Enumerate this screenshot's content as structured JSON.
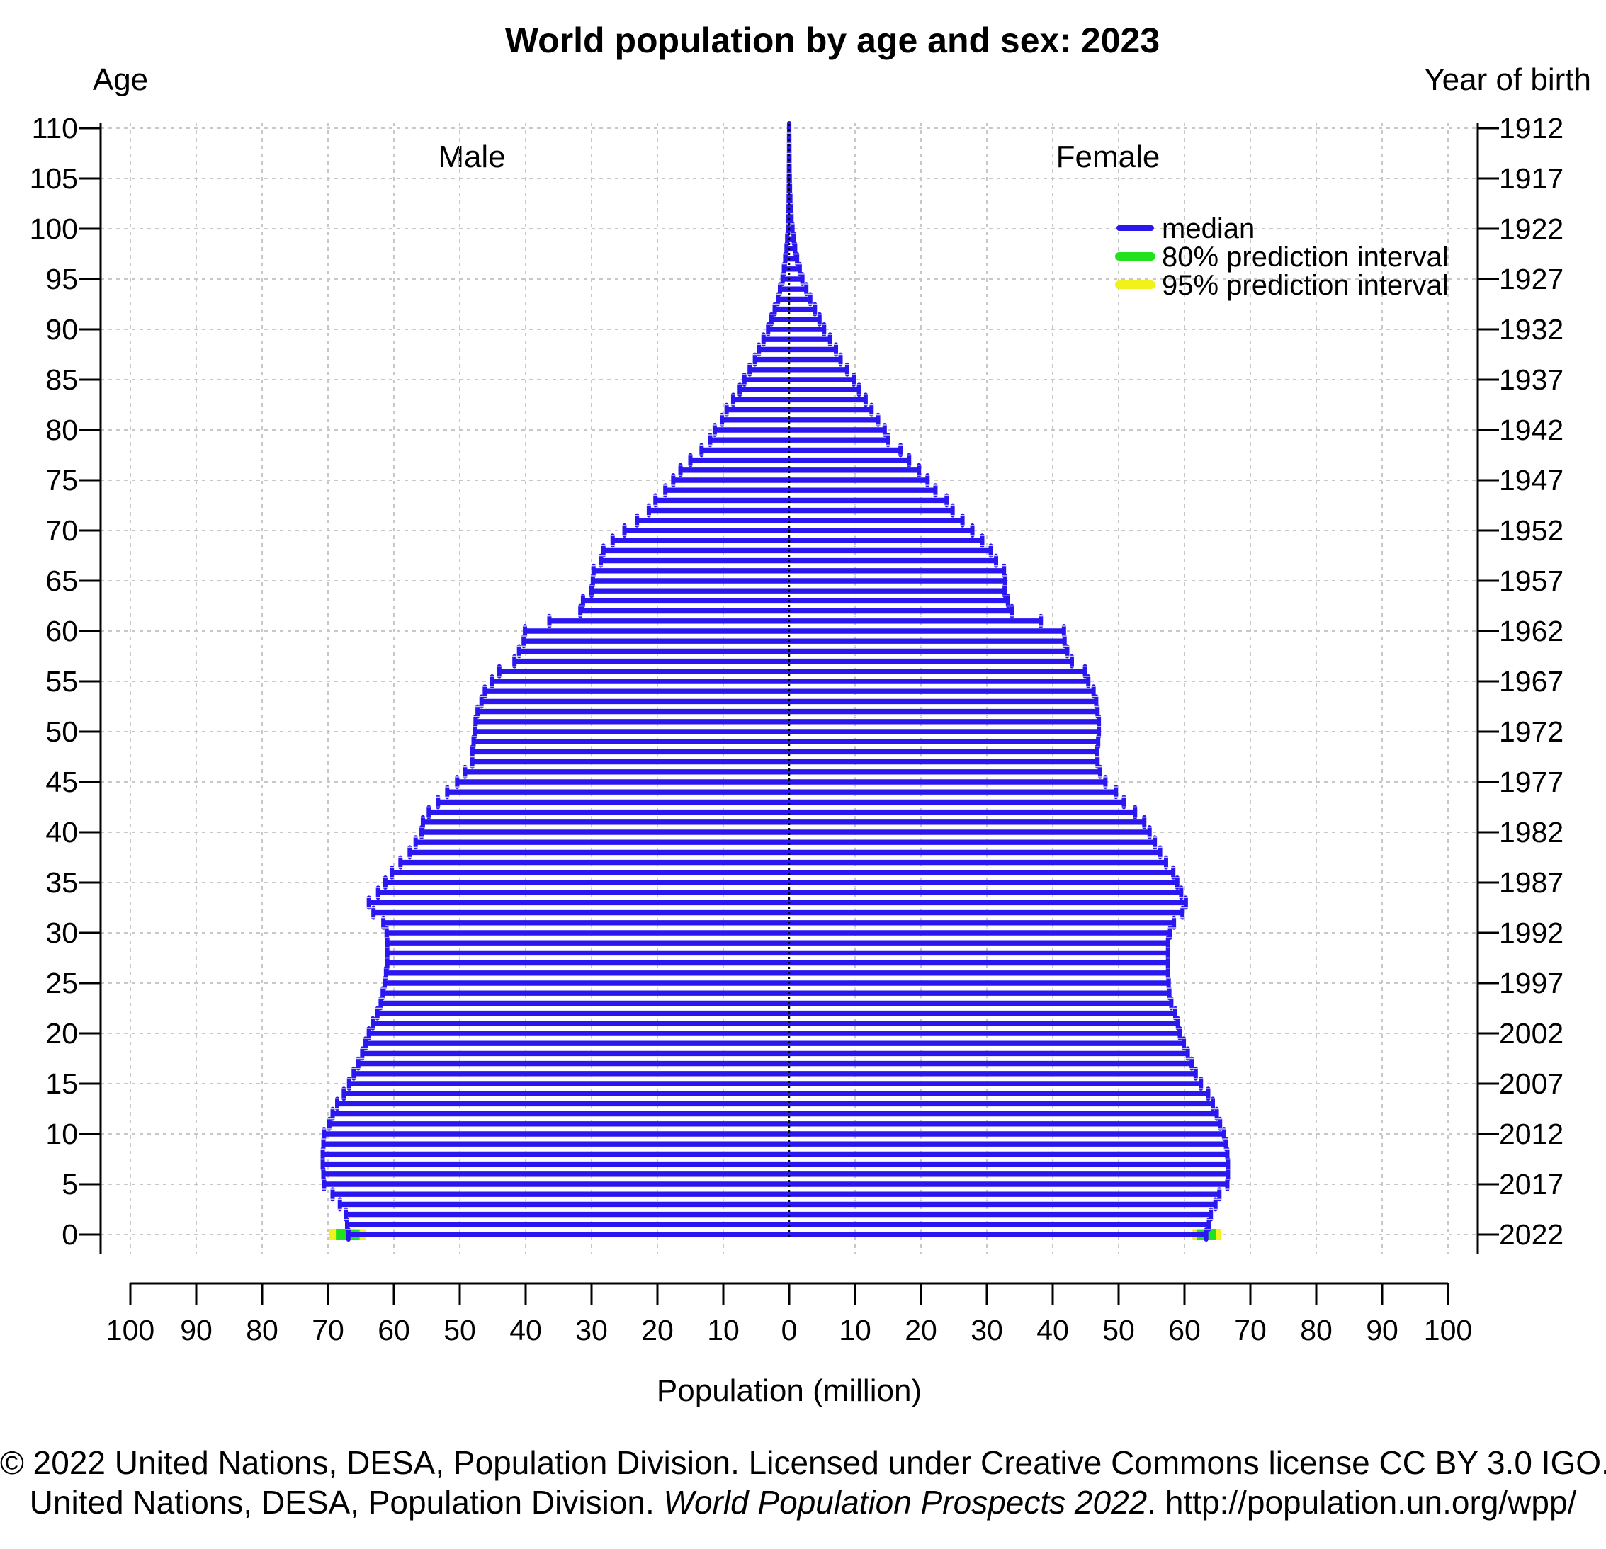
{
  "colors": {
    "median": "#2a17f0",
    "pi80": "#22e11f",
    "pi95": "#f2f21a"
  },
  "chart_data": {
    "type": "bar",
    "orientation": "horizontal",
    "title": "World population by age and sex: 2023",
    "left_axis_label": "Age",
    "right_axis_label": "Year of birth",
    "xlabel": "Population (million)",
    "male_label": "Male",
    "female_label": "Female",
    "grid": true,
    "legend_position": "top-right",
    "xlim": [
      -100,
      100
    ],
    "ylim": [
      0,
      110
    ],
    "x_ticks": [
      "100",
      "90",
      "80",
      "70",
      "60",
      "50",
      "40",
      "30",
      "20",
      "10",
      "0",
      "10",
      "20",
      "30",
      "40",
      "50",
      "60",
      "70",
      "80",
      "90",
      "100"
    ],
    "age_ticks": [
      "0",
      "5",
      "10",
      "15",
      "20",
      "25",
      "30",
      "35",
      "40",
      "45",
      "50",
      "55",
      "60",
      "65",
      "70",
      "75",
      "80",
      "85",
      "90",
      "95",
      "100",
      "105",
      "110"
    ],
    "birth_year_ticks": [
      "2022",
      "2017",
      "2012",
      "2007",
      "2002",
      "1997",
      "1992",
      "1987",
      "1982",
      "1977",
      "1972",
      "1967",
      "1962",
      "1957",
      "1952",
      "1947",
      "1942",
      "1937",
      "1932",
      "1927",
      "1922",
      "1917",
      "1912"
    ],
    "legend": [
      "median",
      "80% prediction interval",
      "95% prediction interval"
    ],
    "ages": [
      0,
      1,
      2,
      3,
      4,
      5,
      6,
      7,
      8,
      9,
      10,
      11,
      12,
      13,
      14,
      15,
      16,
      17,
      18,
      19,
      20,
      21,
      22,
      23,
      24,
      25,
      26,
      27,
      28,
      29,
      30,
      31,
      32,
      33,
      34,
      35,
      36,
      37,
      38,
      39,
      40,
      41,
      42,
      43,
      44,
      45,
      46,
      47,
      48,
      49,
      50,
      51,
      52,
      53,
      54,
      55,
      56,
      57,
      58,
      59,
      60,
      61,
      62,
      63,
      64,
      65,
      66,
      67,
      68,
      69,
      70,
      71,
      72,
      73,
      74,
      75,
      76,
      77,
      78,
      79,
      80,
      81,
      82,
      83,
      84,
      85,
      86,
      87,
      88,
      89,
      90,
      91,
      92,
      93,
      94,
      95,
      96,
      97,
      98,
      99,
      100,
      101,
      102,
      103,
      104,
      105,
      106,
      107,
      108,
      109,
      110
    ],
    "series": [
      {
        "name": "Male",
        "values": [
          66.9,
          67.1,
          67.3,
          68.2,
          69.3,
          70.6,
          70.7,
          70.8,
          70.8,
          70.7,
          70.6,
          69.8,
          69.3,
          68.6,
          67.6,
          66.8,
          66.1,
          65.4,
          64.8,
          64.3,
          63.8,
          63.2,
          62.5,
          62.0,
          61.7,
          61.4,
          61.2,
          61.0,
          61.0,
          61.0,
          61.1,
          61.6,
          63.1,
          63.8,
          62.4,
          61.3,
          60.3,
          59.0,
          57.6,
          56.7,
          55.8,
          55.6,
          54.7,
          53.3,
          51.9,
          50.4,
          49.2,
          48.1,
          48.1,
          47.9,
          47.7,
          47.6,
          47.3,
          46.7,
          46.2,
          45.1,
          44.0,
          41.7,
          41.0,
          40.3,
          40.1,
          36.4,
          31.7,
          31.3,
          30.0,
          29.8,
          29.7,
          28.6,
          28.2,
          26.8,
          25.0,
          23.1,
          21.3,
          20.3,
          18.8,
          17.6,
          16.5,
          15.0,
          13.3,
          12.0,
          11.3,
          10.2,
          9.5,
          8.5,
          7.5,
          6.8,
          6.0,
          5.2,
          4.6,
          3.9,
          3.2,
          2.7,
          2.2,
          1.7,
          1.4,
          1.0,
          0.8,
          0.6,
          0.4,
          0.3,
          0.2,
          0.15,
          0.1,
          0.08,
          0.06,
          0.05,
          0.04,
          0.03,
          0.02,
          0.02,
          0.01
        ]
      },
      {
        "name": "Female",
        "values": [
          63.3,
          63.7,
          64.0,
          64.7,
          65.3,
          66.5,
          66.6,
          66.6,
          66.5,
          66.3,
          66.0,
          65.4,
          64.9,
          64.3,
          63.6,
          62.5,
          61.7,
          61.1,
          60.5,
          59.9,
          59.3,
          59.0,
          58.6,
          58.0,
          57.7,
          57.6,
          57.5,
          57.5,
          57.5,
          57.5,
          57.8,
          58.4,
          59.7,
          60.2,
          59.5,
          58.9,
          58.3,
          57.2,
          56.3,
          55.5,
          54.7,
          53.9,
          52.5,
          50.8,
          49.6,
          48.0,
          47.2,
          46.8,
          46.7,
          46.9,
          47.0,
          47.0,
          46.8,
          46.6,
          46.2,
          45.4,
          44.9,
          42.9,
          42.2,
          41.8,
          41.7,
          38.2,
          33.8,
          33.2,
          32.7,
          32.8,
          32.6,
          31.4,
          30.6,
          29.3,
          27.8,
          26.3,
          24.8,
          23.9,
          22.2,
          21.0,
          19.7,
          18.2,
          16.9,
          15.0,
          14.5,
          13.5,
          12.5,
          11.6,
          10.6,
          9.8,
          8.8,
          7.8,
          7.1,
          6.2,
          5.3,
          4.6,
          3.9,
          3.2,
          2.6,
          2.0,
          1.6,
          1.2,
          0.9,
          0.7,
          0.5,
          0.35,
          0.25,
          0.18,
          0.12,
          0.08,
          0.05,
          0.04,
          0.03,
          0.02,
          0.01
        ]
      }
    ],
    "age0_intervals": {
      "male": {
        "pi80": [
          65.2,
          68.8
        ],
        "pi95": [
          64.3,
          69.8
        ]
      },
      "female": {
        "pi80": [
          61.9,
          64.8
        ],
        "pi95": [
          61.2,
          65.6
        ]
      }
    }
  },
  "footer": {
    "line1": "© 2022 United Nations, DESA, Population Division. Licensed under Creative Commons license CC BY 3.0 IGO.",
    "line2_pre": "United Nations, DESA, Population Division. ",
    "line2_italic": "World Population Prospects 2022",
    "line2_post": ". http://population.un.org/wpp/"
  }
}
